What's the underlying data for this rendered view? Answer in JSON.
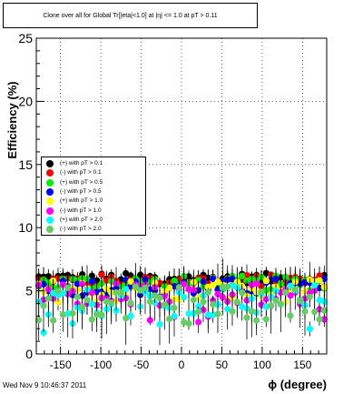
{
  "chart_data": {
    "type": "scatter",
    "title": "Clone  over all for Global Tr[|eta|<1.0] at |η| <= 1.0 at pT > 0.11",
    "xlabel": "ϕ (degree)",
    "ylabel": "Efficiency (%)",
    "xlim": [
      -180,
      180
    ],
    "ylim": [
      0,
      25
    ],
    "x_ticks": [
      -150,
      -100,
      -50,
      0,
      50,
      100,
      150
    ],
    "y_ticks": [
      0,
      5,
      10,
      15,
      20,
      25
    ],
    "grid": true,
    "legend_position": "middle-left",
    "series": [
      {
        "name": "(+) with pT > 0.1",
        "color": "#000000",
        "base": 6.0,
        "spread": 0.4
      },
      {
        "name": "(-) with pT > 0.1",
        "color": "#ff0000",
        "base": 5.8,
        "spread": 0.5
      },
      {
        "name": "(+) with pT > 0.5",
        "color": "#00ee00",
        "base": 5.6,
        "spread": 0.6
      },
      {
        "name": "(-) with pT > 0.5",
        "color": "#0000ff",
        "base": 5.3,
        "spread": 0.7
      },
      {
        "name": "(+) with pT > 1.0",
        "color": "#ffff00",
        "base": 5.0,
        "spread": 0.9
      },
      {
        "name": "(-) with pT > 1.0",
        "color": "#ff00ff",
        "base": 4.7,
        "spread": 1.0
      },
      {
        "name": "(+) with pT > 2.0",
        "color": "#00ffff",
        "base": 4.2,
        "spread": 1.3
      },
      {
        "name": "(-) with pT > 2.0",
        "color": "#66cc66",
        "base": 4.0,
        "spread": 1.5
      }
    ],
    "footer": "Wed Nov  9 10:46:37 2011"
  }
}
